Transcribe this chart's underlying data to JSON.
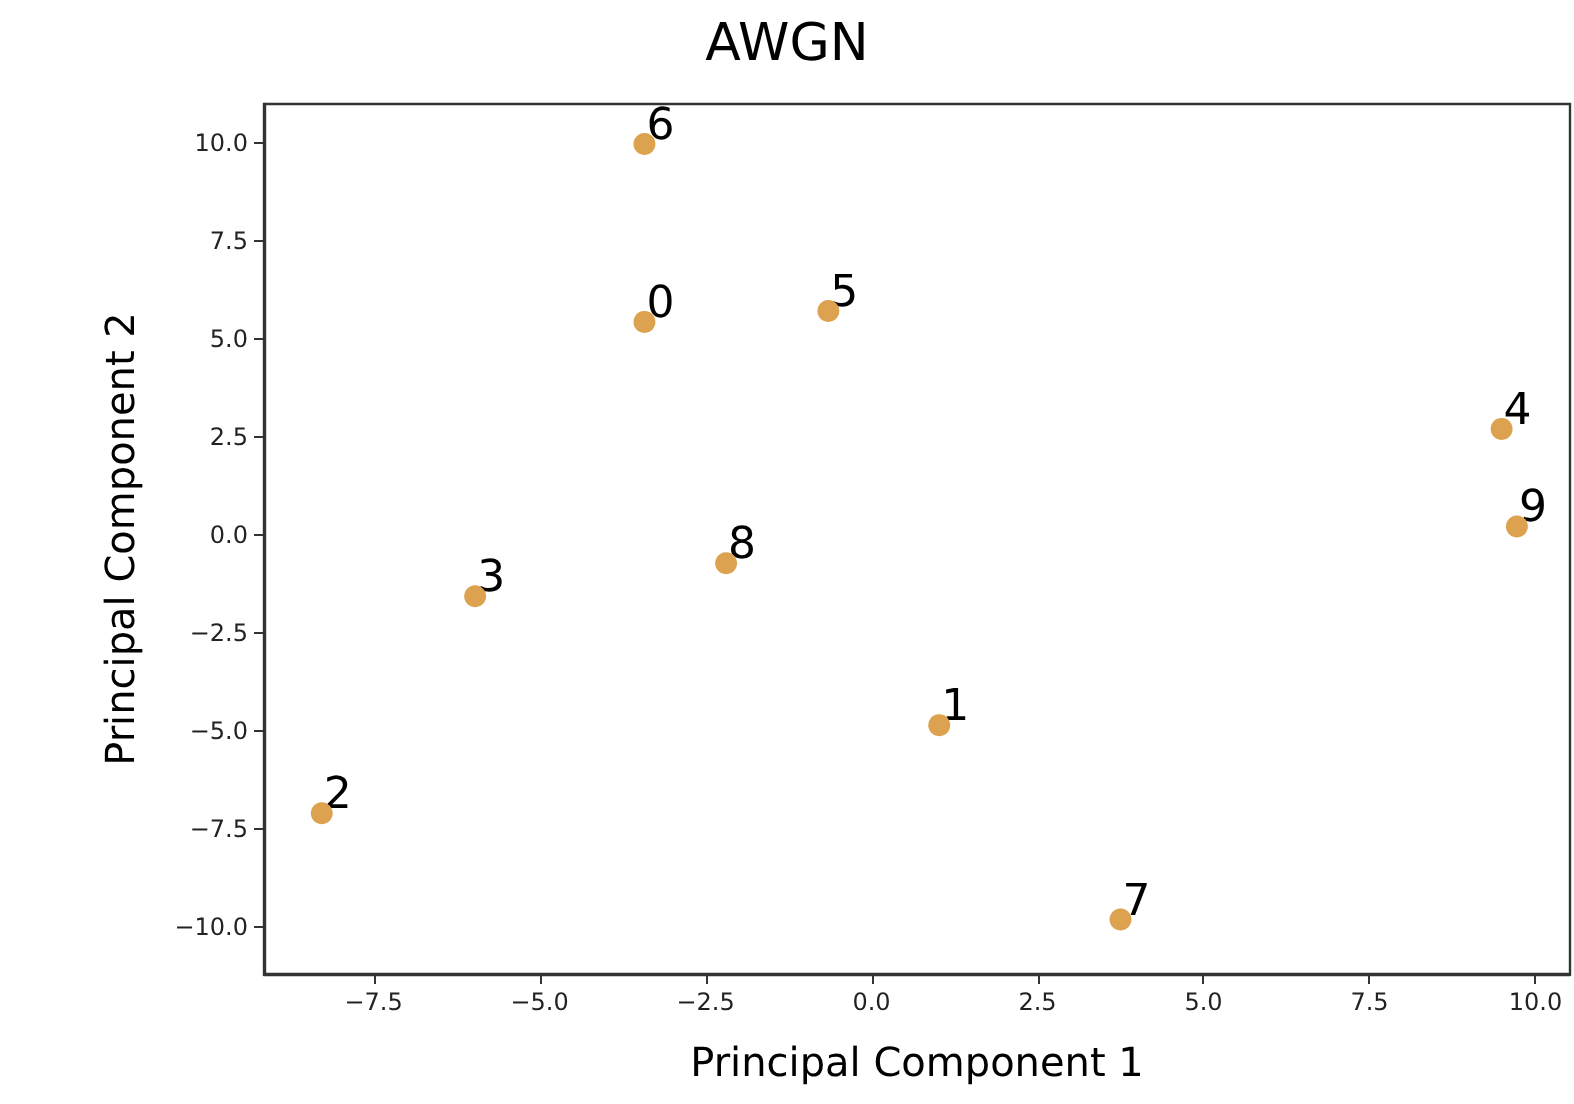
{
  "chart_data": {
    "type": "scatter",
    "title": "AWGN",
    "xlabel": "Principal Component 1",
    "ylabel": "Principal Component 2",
    "x": [
      -3.42,
      1.02,
      -8.28,
      -5.97,
      9.49,
      -0.65,
      -3.42,
      3.75,
      -2.19,
      9.72
    ],
    "series": [
      {
        "color": "#dda24f",
        "values": [
          5.44,
          -4.85,
          -7.1,
          -1.56,
          2.71,
          5.72,
          9.98,
          -9.81,
          -0.72,
          0.22
        ]
      }
    ],
    "marker": "circle",
    "grid": false,
    "xlim": [
      -9.15,
      10.52
    ],
    "ylim": [
      -11.2,
      11.0
    ],
    "xticks": [
      {
        "value": -7.5,
        "label": "−7.5"
      },
      {
        "value": -5,
        "label": "−5.0"
      },
      {
        "value": -2.5,
        "label": "−2.5"
      },
      {
        "value": 0,
        "label": "0.0"
      },
      {
        "value": 2.5,
        "label": "2.5"
      },
      {
        "value": 5,
        "label": "5.0"
      },
      {
        "value": 7.5,
        "label": "7.5"
      },
      {
        "value": 10,
        "label": "10.0"
      }
    ],
    "yticks": [
      {
        "value": -10,
        "label": "−10.0"
      },
      {
        "value": -7.5,
        "label": "−7.5"
      },
      {
        "value": -5,
        "label": "−5.0"
      },
      {
        "value": -2.5,
        "label": "−2.5"
      },
      {
        "value": 0,
        "label": "0.0"
      },
      {
        "value": 2.5,
        "label": "2.5"
      },
      {
        "value": 5,
        "label": "5.0"
      },
      {
        "value": 7.5,
        "label": "7.5"
      },
      {
        "value": 10,
        "label": "10.0"
      }
    ],
    "annotations": [
      {
        "text": "0",
        "x": -3.42,
        "y": 5.44
      },
      {
        "text": "1",
        "x": 1.02,
        "y": -4.85
      },
      {
        "text": "2",
        "x": -8.28,
        "y": -7.1
      },
      {
        "text": "3",
        "x": -5.97,
        "y": -1.56
      },
      {
        "text": "4",
        "x": 9.49,
        "y": 2.71
      },
      {
        "text": "5",
        "x": -0.65,
        "y": 5.72
      },
      {
        "text": "6",
        "x": -3.42,
        "y": 9.98
      },
      {
        "text": "7",
        "x": 3.75,
        "y": -9.81
      },
      {
        "text": "8",
        "x": -2.19,
        "y": -0.72
      },
      {
        "text": "9",
        "x": 9.72,
        "y": 0.22
      }
    ]
  }
}
